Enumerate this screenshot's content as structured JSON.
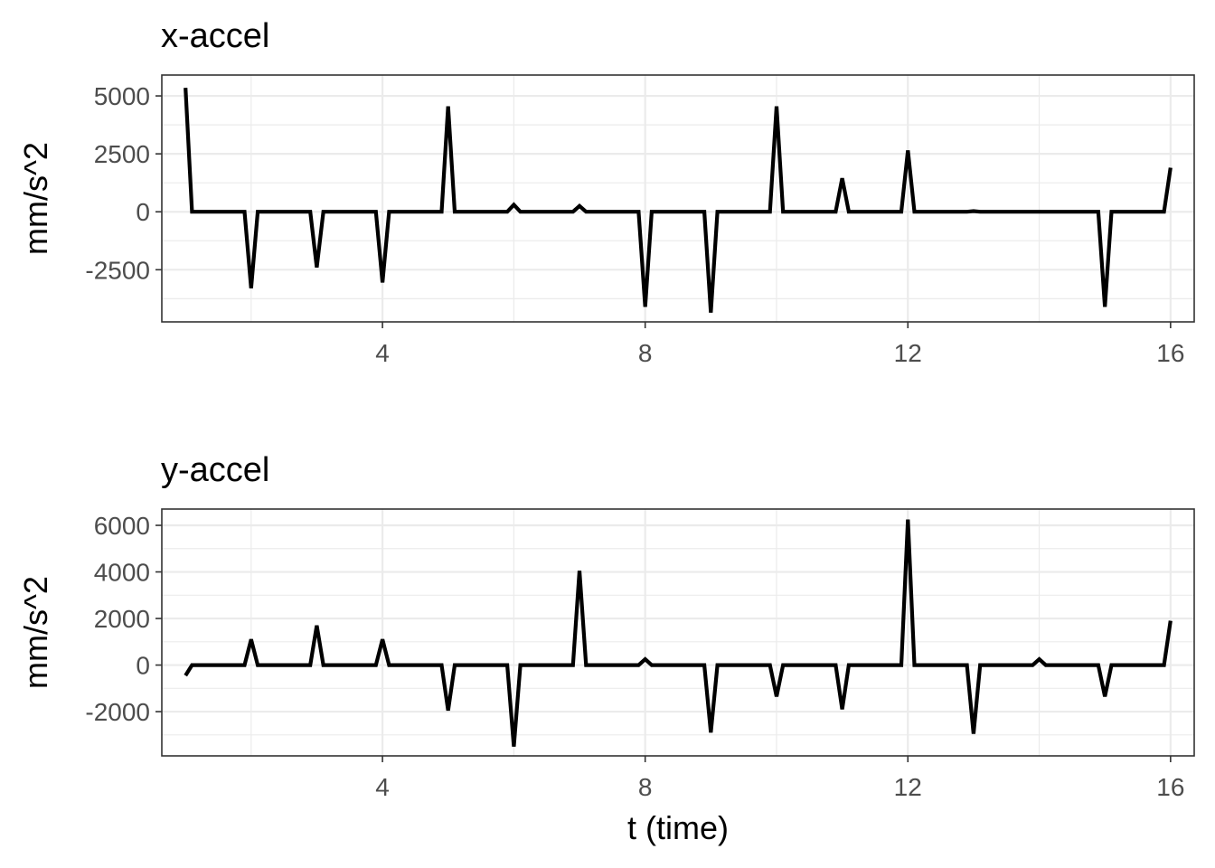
{
  "chart_data": [
    {
      "type": "line",
      "title": "x-accel",
      "xlabel": "",
      "ylabel": "mm/s^2",
      "xlim": [
        0.64,
        16.36
      ],
      "ylim": [
        -4750,
        5900
      ],
      "x_ticks": [
        4,
        8,
        12,
        16
      ],
      "y_ticks": [
        -2500,
        0,
        2500,
        5000
      ],
      "y_tick_labels": [
        "-2500",
        "0",
        "2500",
        "5000"
      ],
      "grid": true,
      "series": [
        {
          "x": [
            1,
            1.1,
            1.9,
            2,
            2.1,
            2.9,
            3,
            3.1,
            3.9,
            4,
            4.1,
            4.9,
            5,
            5.1,
            5.9,
            6,
            6.1,
            6.9,
            7,
            7.1,
            7.9,
            8,
            8.1,
            8.9,
            9,
            9.1,
            9.9,
            10,
            10.1,
            10.9,
            11,
            11.1,
            11.9,
            12,
            12.1,
            12.9,
            13,
            13.1,
            14.9,
            15,
            15.1,
            15.9,
            16
          ],
          "values": [
            5350,
            0,
            0,
            -3300,
            0,
            0,
            -2400,
            0,
            0,
            -3050,
            0,
            0,
            4550,
            0,
            0,
            300,
            0,
            0,
            250,
            0,
            0,
            -4100,
            0,
            0,
            -4350,
            0,
            0,
            4550,
            0,
            0,
            1450,
            0,
            0,
            2650,
            0,
            0,
            30,
            0,
            0,
            -4100,
            0,
            0,
            1900
          ]
        }
      ]
    },
    {
      "type": "line",
      "title": "y-accel",
      "xlabel": "t (time)",
      "ylabel": "mm/s^2",
      "xlim": [
        0.64,
        16.36
      ],
      "ylim": [
        -3900,
        6700
      ],
      "x_ticks": [
        4,
        8,
        12,
        16
      ],
      "y_ticks": [
        -2000,
        0,
        2000,
        4000,
        6000
      ],
      "y_tick_labels": [
        "-2000",
        "0",
        "2000",
        "4000",
        "6000"
      ],
      "grid": true,
      "series": [
        {
          "x": [
            1,
            1.1,
            1.9,
            2,
            2.1,
            2.9,
            3,
            3.1,
            3.9,
            4,
            4.1,
            4.9,
            5,
            5.1,
            5.9,
            6,
            6.1,
            6.9,
            7,
            7.1,
            7.9,
            8,
            8.1,
            8.9,
            9,
            9.1,
            9.9,
            10,
            10.1,
            10.9,
            11,
            11.1,
            11.9,
            12,
            12.1,
            12.9,
            13,
            13.1,
            13.9,
            14,
            14.1,
            14.9,
            15,
            15.1,
            15.9,
            16
          ],
          "values": [
            -450,
            0,
            0,
            1100,
            0,
            0,
            1700,
            0,
            0,
            1100,
            0,
            0,
            -1950,
            0,
            0,
            -3500,
            0,
            0,
            4050,
            0,
            0,
            250,
            0,
            0,
            -2900,
            0,
            0,
            -1350,
            0,
            0,
            -1900,
            0,
            0,
            6250,
            0,
            0,
            -2950,
            0,
            0,
            250,
            0,
            0,
            -1350,
            0,
            0,
            1900
          ]
        }
      ]
    }
  ]
}
